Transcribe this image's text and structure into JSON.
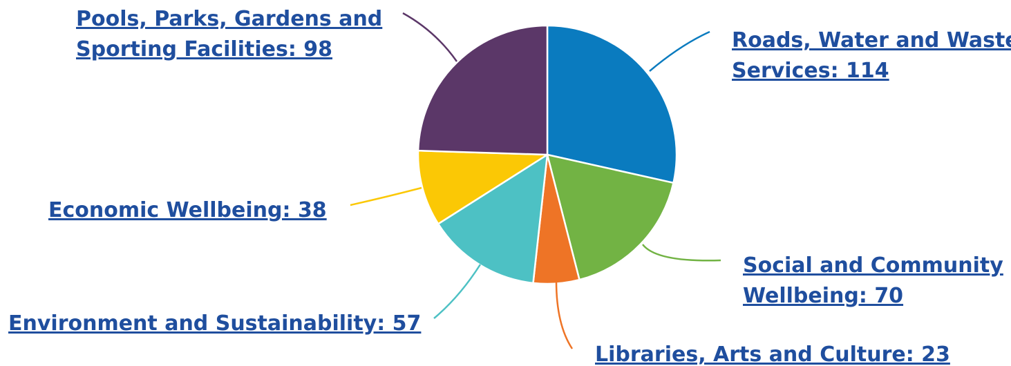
{
  "chart_data": {
    "type": "pie",
    "title": "",
    "slices": [
      {
        "label_lines": [
          "Roads, Water and Waste",
          "Services: 114"
        ],
        "category": "Roads, Water and Waste Services",
        "value": 114,
        "color": "#0a7bbf"
      },
      {
        "label_lines": [
          "Social and Community",
          "Wellbeing: 70"
        ],
        "category": "Social and Community Wellbeing",
        "value": 70,
        "color": "#72b344"
      },
      {
        "label_lines": [
          "Libraries, Arts and Culture: 23"
        ],
        "category": "Libraries, Arts and Culture",
        "value": 23,
        "color": "#ee7426"
      },
      {
        "label_lines": [
          "Environment and Sustainability: 57"
        ],
        "category": "Environment and Sustainability",
        "value": 57,
        "color": "#4dc1c4"
      },
      {
        "label_lines": [
          "Economic Wellbeing: 38"
        ],
        "category": "Economic Wellbeing",
        "value": 38,
        "color": "#fbc805"
      },
      {
        "label_lines": [
          "Pools, Parks, Gardens and",
          "Sporting Facilities: 98"
        ],
        "category": "Pools, Parks, Gardens and Sporting Facilities",
        "value": 98,
        "color": "#5b3768"
      }
    ],
    "start": "12 o'clock",
    "direction": "clockwise",
    "legend": "none",
    "label_style": "underlined link with leader line"
  }
}
